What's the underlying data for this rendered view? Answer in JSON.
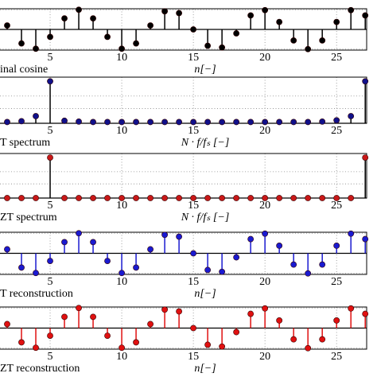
{
  "chart_data": [
    {
      "type": "stem",
      "label": "inal cosine",
      "xlabel": "n[−]",
      "x": [
        2,
        3,
        4,
        5,
        6,
        7,
        8,
        9,
        10,
        11,
        12,
        13,
        14,
        15,
        16,
        17,
        18,
        19,
        20,
        21,
        22,
        23,
        24,
        25,
        26,
        27
      ],
      "values": [
        0.2,
        -0.71,
        -0.98,
        -0.38,
        0.56,
        1,
        0.56,
        -0.38,
        -0.98,
        -0.71,
        0.2,
        0.92,
        0.83,
        0,
        -0.83,
        -0.92,
        -0.2,
        0.71,
        0.98,
        0.38,
        -0.56,
        -1,
        -0.56,
        0.38,
        0.98,
        0.71
      ],
      "color": "#000000",
      "stem_color": "#000000",
      "xlim": [
        1.5,
        27.1
      ],
      "xticks": [
        5,
        10,
        15,
        20,
        25
      ],
      "ylim": [
        -1.05,
        1.05
      ],
      "ygrid": [
        -1,
        1
      ]
    },
    {
      "type": "stem",
      "label": "T spectrum",
      "xlabel": "N · f/fₛ [−]",
      "x": [
        2,
        3,
        4,
        5,
        6,
        7,
        8,
        9,
        10,
        11,
        12,
        13,
        14,
        15,
        16,
        17,
        18,
        19,
        20,
        21,
        22,
        23,
        24,
        25,
        26,
        27
      ],
      "values": [
        0.03,
        0.05,
        0.17,
        1,
        0.06,
        0.04,
        0.03,
        0.03,
        0.03,
        0.03,
        0.03,
        0.03,
        0.03,
        0.03,
        0.03,
        0.03,
        0.03,
        0.03,
        0.03,
        0.03,
        0.03,
        0.03,
        0.04,
        0.07,
        0.17,
        1
      ],
      "color": "#10108a",
      "stem_color": "#000000",
      "xlim": [
        1.5,
        27.1
      ],
      "xticks": [
        5,
        10,
        15,
        20,
        25
      ],
      "ylim": [
        0,
        1.1
      ],
      "ygrid": [
        0.35,
        0.65
      ]
    },
    {
      "type": "stem",
      "label": "ZT spectrum",
      "xlabel": "N · f/fₛ [−]",
      "x": [
        2,
        3,
        4,
        5,
        6,
        7,
        8,
        9,
        10,
        11,
        12,
        13,
        14,
        15,
        16,
        17,
        18,
        19,
        20,
        21,
        22,
        23,
        24,
        25,
        26,
        27
      ],
      "values": [
        0,
        0,
        0,
        1,
        0,
        0,
        0,
        0,
        0,
        0,
        0,
        0,
        0,
        0,
        0,
        0,
        0,
        0,
        0,
        0,
        0,
        0,
        0,
        0,
        0,
        1
      ],
      "color": "#c81818",
      "stem_color": "#000000",
      "xlim": [
        1.5,
        27.1
      ],
      "xticks": [
        5,
        10,
        15,
        20,
        25
      ],
      "ylim": [
        0,
        1.1
      ],
      "ygrid": [
        0.35,
        0.65
      ]
    },
    {
      "type": "stem",
      "label": "T reconstruction",
      "xlabel": "n[−]",
      "x": [
        2,
        3,
        4,
        5,
        6,
        7,
        8,
        9,
        10,
        11,
        12,
        13,
        14,
        15,
        16,
        17,
        18,
        19,
        20,
        21,
        22,
        23,
        24,
        25,
        26,
        27
      ],
      "values": [
        0.2,
        -0.71,
        -0.98,
        -0.38,
        0.56,
        1,
        0.56,
        -0.38,
        -0.98,
        -0.71,
        0.2,
        0.92,
        0.83,
        0,
        -0.83,
        -0.92,
        -0.2,
        0.71,
        0.98,
        0.38,
        -0.56,
        -1,
        -0.56,
        0.38,
        0.98,
        0.71
      ],
      "color": "#1a1ad0",
      "stem_color": "#1a1ad0",
      "xlim": [
        1.5,
        27.1
      ],
      "xticks": [
        5,
        10,
        15,
        20,
        25
      ],
      "ylim": [
        -1.05,
        1.05
      ],
      "ygrid": [
        -1,
        1
      ]
    },
    {
      "type": "stem",
      "label": "ZT reconstruction",
      "xlabel": "n[−]",
      "x": [
        2,
        3,
        4,
        5,
        6,
        7,
        8,
        9,
        10,
        11,
        12,
        13,
        14,
        15,
        16,
        17,
        18,
        19,
        20,
        21,
        22,
        23,
        24,
        25,
        26,
        27
      ],
      "values": [
        0.2,
        -0.71,
        -0.98,
        -0.38,
        0.56,
        1,
        0.56,
        -0.38,
        -0.98,
        -0.71,
        0.2,
        0.92,
        0.83,
        0,
        -0.83,
        -0.92,
        -0.2,
        0.71,
        0.98,
        0.38,
        -0.56,
        -1,
        -0.56,
        0.38,
        0.98,
        0.71
      ],
      "color": "#e01010",
      "stem_color": "#e01010",
      "xlim": [
        1.5,
        27.1
      ],
      "xticks": [
        5,
        10,
        15,
        20,
        25
      ],
      "ylim": [
        -1.05,
        1.05
      ],
      "ygrid": [
        -1,
        1
      ]
    }
  ]
}
